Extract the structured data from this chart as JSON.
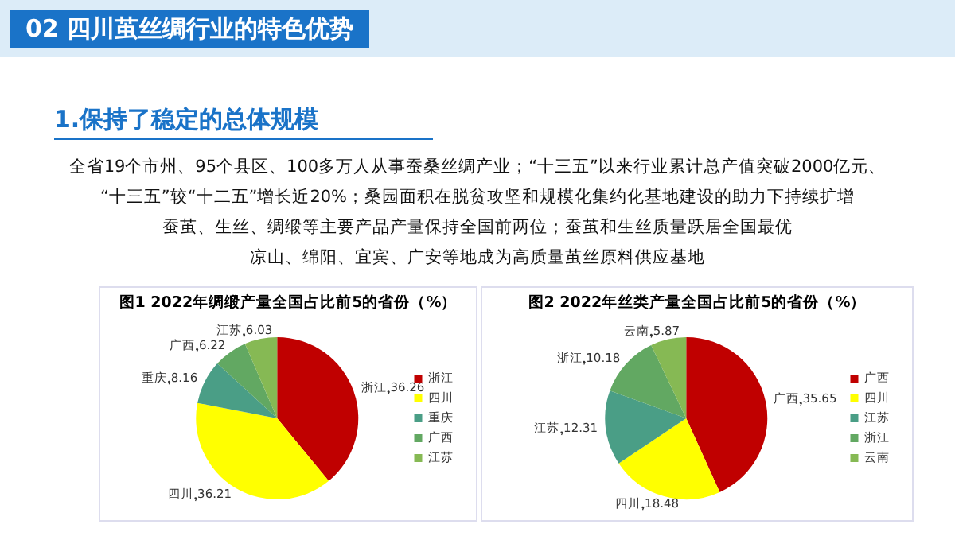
{
  "chart_data": [
    {
      "type": "other",
      "title": "02 四川茧丝绸行业的特色优势",
      "subtitle": "1.保持了稳定的总体规模",
      "annotations": [
        "全省19个市州、95个县区、100多万人从事蚕桑丝绸产业；“十三五”以来行业累计总产值突破2000亿元、",
        "“十三五”较“十二五”增长近20%；桑园面积在脱贫攻坚和规模化集约化基地建设的助力下持续扩增",
        "蚕茧、生丝、绸缎等主要产品产量保持全国前两位；蚕茧和生丝质量跃居全国最优",
        "凉山、绵阳、宜宾、广安等地成为高质量茧丝原料供应基地"
      ]
    },
    {
      "type": "pie",
      "title": "图1   2022年绸缎产量全国占比前5的省份（%）",
      "categories": [
        "浙江",
        "四川",
        "重庆",
        "广西",
        "江苏"
      ],
      "values": [
        36.26,
        36.21,
        8.16,
        6.22,
        6.03
      ],
      "colors": [
        "#c00000",
        "#ffff00",
        "#4a9e86",
        "#62a862",
        "#86b954"
      ],
      "data_labels": true,
      "legend": "right"
    },
    {
      "type": "pie",
      "title": "图2   2022年丝类产量全国占比前5的省份（%）",
      "categories": [
        "广西",
        "四川",
        "江苏",
        "浙江",
        "云南"
      ],
      "values": [
        35.65,
        18.48,
        12.31,
        10.18,
        5.87
      ],
      "colors": [
        "#c00000",
        "#ffff00",
        "#4a9e86",
        "#62a862",
        "#86b954"
      ],
      "data_labels": true,
      "legend": "right"
    }
  ]
}
